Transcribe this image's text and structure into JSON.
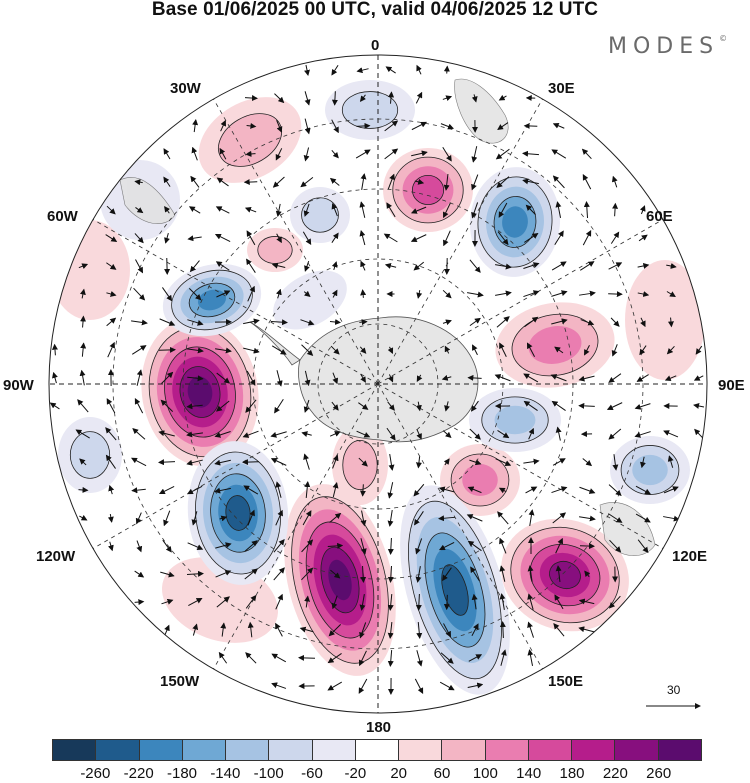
{
  "title": "Base 01/06/2025 00 UTC, valid 04/06/2025 12 UTC",
  "brand": "MODES",
  "brand_mark": "©",
  "longitude_labels": {
    "top": "0",
    "top_right": "30E",
    "right_upper": "60E",
    "right": "90E",
    "right_lower": "120E",
    "bottom_right": "150E",
    "bottom": "180",
    "bottom_left": "150W",
    "left_lower": "120W",
    "left": "90W",
    "left_upper": "60W",
    "top_left": "30W"
  },
  "reference_vector": "30",
  "colorbar": {
    "colors": [
      "#17395a",
      "#1f5b8c",
      "#3c86bd",
      "#6fa8d4",
      "#a6c3e3",
      "#cdd7ec",
      "#e8e8f4",
      "#ffffff",
      "#f9d9dc",
      "#f3b5c4",
      "#ea7db0",
      "#d64a9c",
      "#b51d8b",
      "#870f7e",
      "#5b0c6e"
    ],
    "tick_labels": [
      "-260",
      "-220",
      "-180",
      "-140",
      "-100",
      "-60",
      "-20",
      "20",
      "60",
      "100",
      "140",
      "180",
      "220",
      "260"
    ]
  },
  "map_features": {
    "land_icon": "antarctica-landmass",
    "graticule": "dashed",
    "vectors": "wind-arrows"
  }
}
